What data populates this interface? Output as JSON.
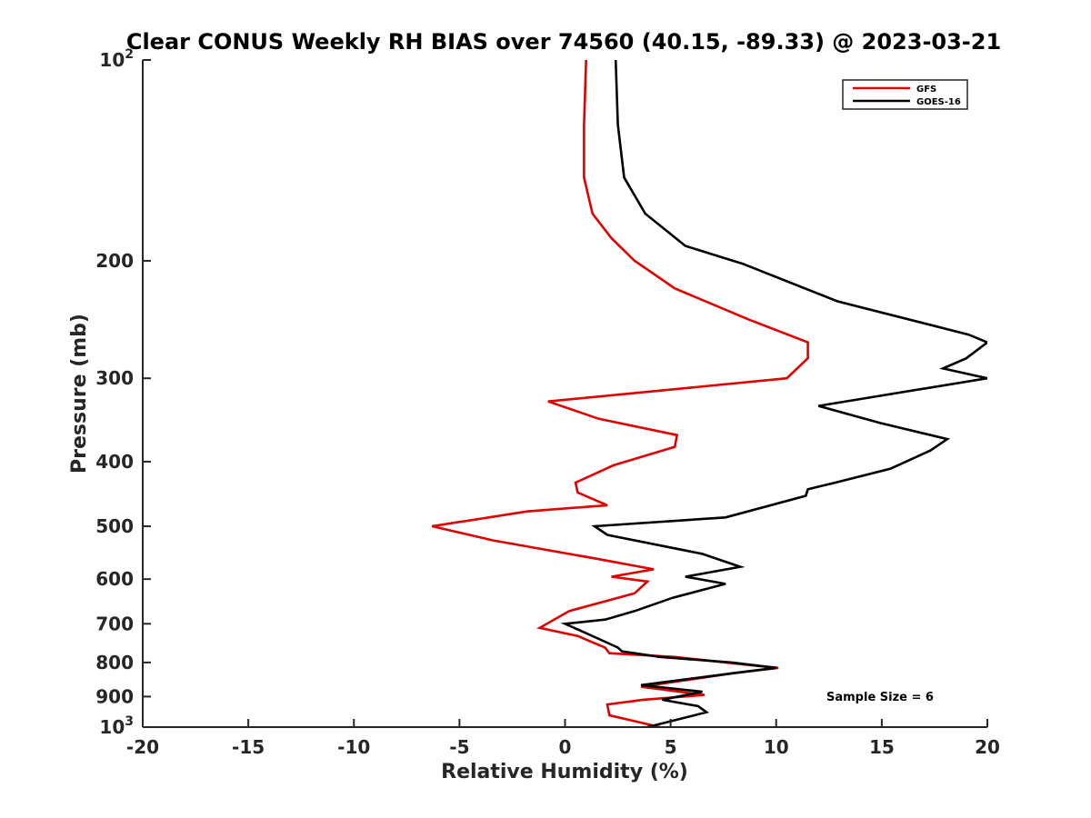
{
  "chart_data": {
    "type": "line",
    "title": "Clear CONUS Weekly RH BIAS over 74560 (40.15, -89.33) @ 2023-03-21",
    "xlabel": "Relative Humidity (%)",
    "ylabel": "Pressure (mb)",
    "xlim": [
      -20,
      20
    ],
    "ylim": [
      100,
      1000
    ],
    "y_scale": "log",
    "y_reversed": true,
    "grid": false,
    "legend_position": "top-right",
    "x_ticks": [
      -20,
      -15,
      -10,
      -5,
      0,
      5,
      10,
      15,
      20
    ],
    "x_tick_labels": [
      "-20",
      "-15",
      "-10",
      "-5",
      "0",
      "5",
      "10",
      "15",
      "20"
    ],
    "y_ticks": [
      {
        "value": 100,
        "base": "10",
        "exp": "2"
      },
      {
        "value": 200,
        "label": "200"
      },
      {
        "value": 300,
        "label": "300"
      },
      {
        "value": 400,
        "label": "400"
      },
      {
        "value": 500,
        "label": "500"
      },
      {
        "value": 600,
        "label": "600"
      },
      {
        "value": 700,
        "label": "700"
      },
      {
        "value": 800,
        "label": "800"
      },
      {
        "value": 900,
        "label": "900"
      },
      {
        "value": 1000,
        "base": "10",
        "exp": "3"
      }
    ],
    "annotation": "Sample Size = 6",
    "series": [
      {
        "name": "GFS",
        "color": "#e00000",
        "points": [
          [
            1.0,
            100
          ],
          [
            0.9,
            125
          ],
          [
            0.9,
            150
          ],
          [
            1.3,
            170
          ],
          [
            2.2,
            185
          ],
          [
            3.3,
            200
          ],
          [
            5.2,
            220
          ],
          [
            8.7,
            245
          ],
          [
            11.5,
            265
          ],
          [
            11.5,
            280
          ],
          [
            10.5,
            300
          ],
          [
            -0.8,
            325
          ],
          [
            1.6,
            345
          ],
          [
            5.3,
            365
          ],
          [
            5.2,
            380
          ],
          [
            2.3,
            405
          ],
          [
            0.5,
            430
          ],
          [
            0.6,
            445
          ],
          [
            2.0,
            465
          ],
          [
            -1.8,
            475
          ],
          [
            -6.3,
            500
          ],
          [
            -3.4,
            525
          ],
          [
            1.6,
            560
          ],
          [
            4.2,
            580
          ],
          [
            2.2,
            595
          ],
          [
            3.9,
            605
          ],
          [
            3.3,
            630
          ],
          [
            0.2,
            670
          ],
          [
            -1.2,
            710
          ],
          [
            0.6,
            730
          ],
          [
            1.9,
            760
          ],
          [
            2.1,
            775
          ],
          [
            5.2,
            785
          ],
          [
            8.4,
            805
          ],
          [
            10.1,
            815
          ],
          [
            8.0,
            830
          ],
          [
            3.6,
            870
          ],
          [
            6.6,
            895
          ],
          [
            3.7,
            910
          ],
          [
            2.0,
            925
          ],
          [
            2.1,
            960
          ],
          [
            3.0,
            975
          ],
          [
            4.5,
            1000
          ]
        ]
      },
      {
        "name": "GOES-16",
        "color": "#000000",
        "points": [
          [
            2.4,
            100
          ],
          [
            2.5,
            125
          ],
          [
            2.8,
            150
          ],
          [
            3.8,
            170
          ],
          [
            5.7,
            190
          ],
          [
            8.4,
            202
          ],
          [
            12.9,
            230
          ],
          [
            19.1,
            258
          ],
          [
            20.0,
            265
          ],
          [
            19.0,
            280
          ],
          [
            17.9,
            290
          ],
          [
            20.0,
            300
          ],
          [
            12.0,
            330
          ],
          [
            14.9,
            350
          ],
          [
            18.1,
            370
          ],
          [
            17.3,
            385
          ],
          [
            15.4,
            410
          ],
          [
            12.8,
            430
          ],
          [
            11.5,
            440
          ],
          [
            11.4,
            450
          ],
          [
            7.6,
            485
          ],
          [
            1.4,
            500
          ],
          [
            2.0,
            515
          ],
          [
            6.5,
            550
          ],
          [
            8.3,
            575
          ],
          [
            5.7,
            595
          ],
          [
            7.6,
            610
          ],
          [
            5.1,
            640
          ],
          [
            3.3,
            670
          ],
          [
            1.9,
            690
          ],
          [
            0.0,
            700
          ],
          [
            1.7,
            740
          ],
          [
            2.5,
            760
          ],
          [
            2.7,
            770
          ],
          [
            4.5,
            785
          ],
          [
            7.9,
            800
          ],
          [
            10.0,
            815
          ],
          [
            8.0,
            830
          ],
          [
            3.6,
            865
          ],
          [
            6.5,
            885
          ],
          [
            4.6,
            910
          ],
          [
            6.3,
            930
          ],
          [
            6.7,
            950
          ],
          [
            3.9,
            1000
          ]
        ]
      }
    ]
  }
}
